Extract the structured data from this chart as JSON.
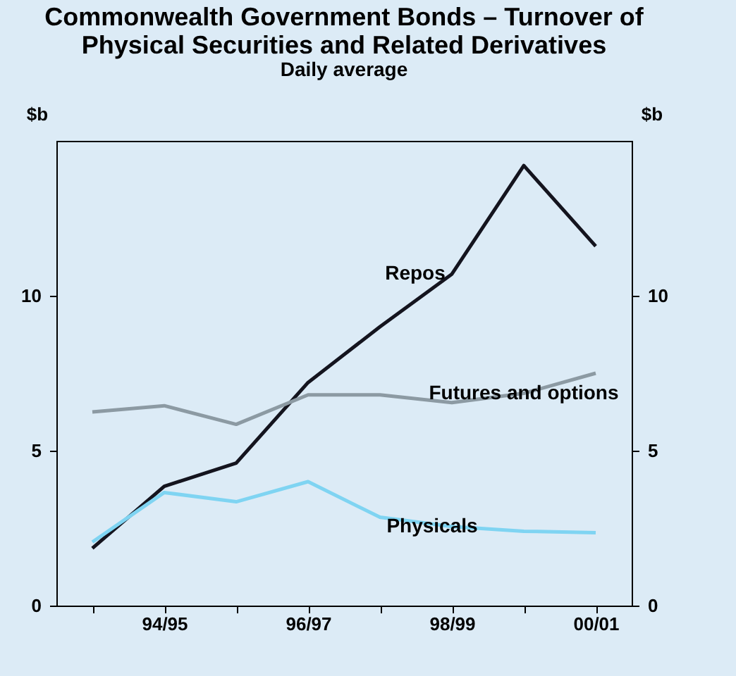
{
  "chart_data": {
    "type": "line",
    "title": "Commonwealth Government Bonds – Turnover of Physical Securities and Related Derivatives",
    "subtitle": "Daily average",
    "ylabel": "$b",
    "y2label": "$b",
    "categories": [
      null,
      "94/95",
      null,
      "96/97",
      null,
      "98/99",
      null,
      "00/01"
    ],
    "series": [
      {
        "name": "Repos",
        "color": "#14141e",
        "values": [
          1.85,
          3.85,
          4.6,
          7.2,
          9.0,
          10.7,
          14.2,
          11.6
        ]
      },
      {
        "name": "Futures and options",
        "color": "#8c9aa3",
        "values": [
          6.25,
          6.45,
          5.85,
          6.8,
          6.8,
          6.55,
          6.85,
          7.5
        ]
      },
      {
        "name": "Physicals",
        "color": "#7fd4f2",
        "values": [
          2.05,
          3.65,
          3.35,
          4.0,
          2.85,
          2.55,
          2.4,
          2.35
        ]
      }
    ],
    "ylim": [
      0,
      15
    ],
    "yticks": [
      0,
      5,
      10
    ],
    "y2lim": [
      0,
      15
    ],
    "y2ticks": [
      0,
      5,
      10
    ],
    "grid": false
  }
}
